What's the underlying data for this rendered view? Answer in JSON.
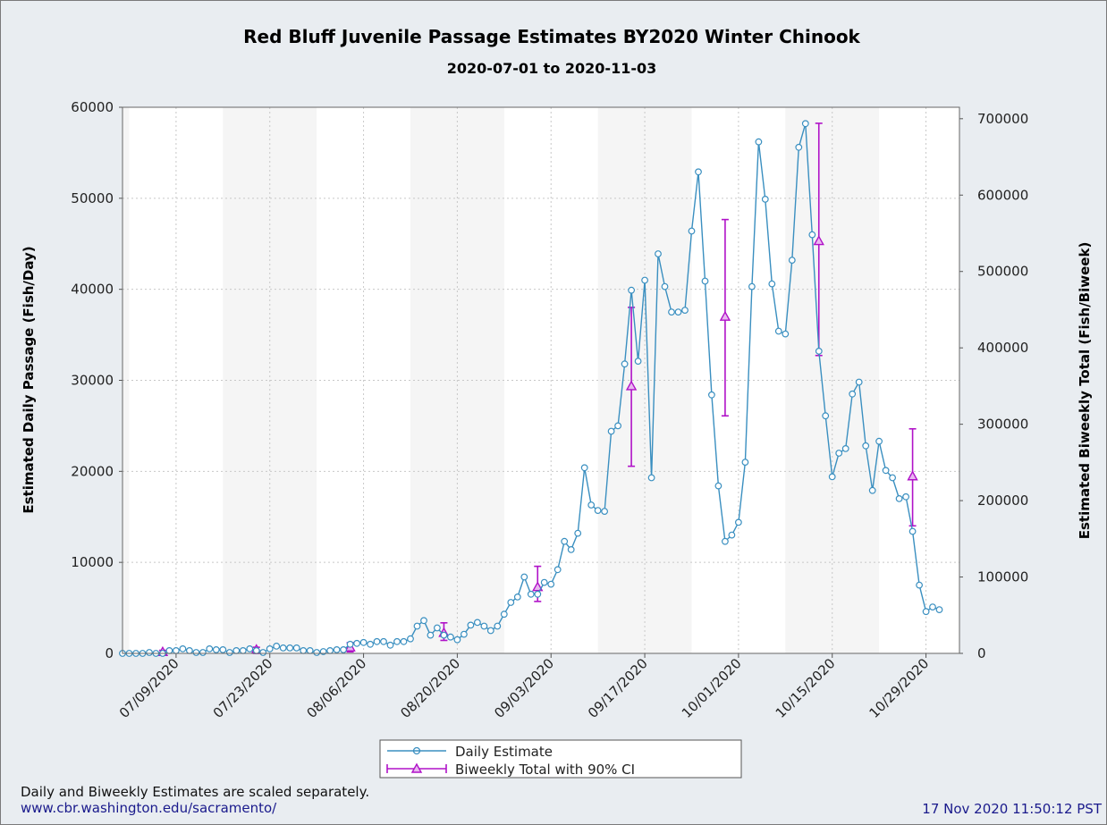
{
  "chart_data": {
    "type": "line",
    "title": "Red Bluff Juvenile Passage Estimates BY2020 Winter Chinook",
    "subtitle": "2020-07-01 to 2020-11-03",
    "ylabel": "Estimated Daily Passage (Fish/Day)",
    "ylabel_right": "Estimated Biweekly Total (Fish/Biweek)",
    "ylim": [
      0,
      60000
    ],
    "ylim_right": [
      0,
      715000
    ],
    "xlim": [
      "2020-07-01",
      "2020-11-03"
    ],
    "grid": true,
    "legend_position": "bottom-center",
    "colors": {
      "daily": "#3a8fc0",
      "biweekly": "#b012c8",
      "band": "#f5f5f5"
    },
    "yticks": [
      0,
      10000,
      20000,
      30000,
      40000,
      50000,
      60000
    ],
    "yticks_right": [
      0,
      100000,
      200000,
      300000,
      400000,
      500000,
      600000,
      700000
    ],
    "xtick_dates": [
      "2020-07-09",
      "2020-07-23",
      "2020-08-06",
      "2020-08-20",
      "2020-09-03",
      "2020-09-17",
      "2020-10-01",
      "2020-10-15",
      "2020-10-29"
    ],
    "xtick_labels": [
      "07/09/2020",
      "07/23/2020",
      "08/06/2020",
      "08/20/2020",
      "09/03/2020",
      "09/17/2020",
      "10/01/2020",
      "10/15/2020",
      "10/29/2020"
    ],
    "series": [
      {
        "name": "Daily Estimate",
        "axis": "left",
        "x_start": "2020-07-01",
        "values": [
          0,
          0,
          0,
          0,
          100,
          0,
          0,
          300,
          300,
          500,
          300,
          100,
          100,
          500,
          400,
          400,
          100,
          300,
          300,
          500,
          300,
          100,
          500,
          800,
          600,
          600,
          600,
          300,
          300,
          100,
          200,
          300,
          400,
          400,
          1000,
          1100,
          1200,
          1000,
          1300,
          1300,
          900,
          1300,
          1300,
          1600,
          3000,
          3600,
          2000,
          2800,
          2000,
          1800,
          1500,
          2100,
          3100,
          3400,
          3000,
          2500,
          3000,
          4300,
          5600,
          6200,
          8400,
          6500,
          6500,
          7800,
          7600,
          9200,
          12300,
          11400,
          13200,
          20400,
          16300,
          15700,
          15600,
          24400,
          25000,
          31800,
          39900,
          32100,
          41000,
          19300,
          43900,
          40300,
          37500,
          37500,
          37700,
          46400,
          52900,
          40900,
          28400,
          18400,
          12300,
          13000,
          14400,
          21000,
          40300,
          56200,
          49900,
          40600,
          35400,
          35100,
          43200,
          55600,
          58200,
          46000,
          33200,
          26100,
          19400,
          22000,
          22500,
          28500,
          29800,
          22800,
          17900,
          23300,
          20100,
          19300,
          17000,
          17200,
          13400,
          7500,
          4600,
          5100,
          4800
        ]
      },
      {
        "name": "Biweekly Total with 90% CI",
        "axis": "right",
        "x": [
          "2020-07-07",
          "2020-07-21",
          "2020-08-04",
          "2020-08-18",
          "2020-09-01",
          "2020-09-15",
          "2020-09-29",
          "2020-10-13",
          "2020-10-27"
        ],
        "values": [
          2000,
          5000,
          8000,
          27000,
          87000,
          350000,
          441000,
          540000,
          232000
        ],
        "ci_low": [
          0,
          0,
          2000,
          17000,
          68000,
          245000,
          311000,
          390000,
          167000
        ],
        "ci_high": [
          4000,
          8000,
          14000,
          40000,
          114000,
          453000,
          568000,
          694000,
          294000
        ]
      }
    ]
  },
  "legend": {
    "daily_label": "Daily Estimate",
    "biweekly_label": "Biweekly Total with 90% CI"
  },
  "footer": {
    "note": "Daily and Biweekly Estimates are scaled separately.",
    "url": "www.cbr.washington.edu/sacramento/",
    "timestamp": "17 Nov 2020 11:50:12 PST",
    "url_color": "#1a1a8c"
  }
}
